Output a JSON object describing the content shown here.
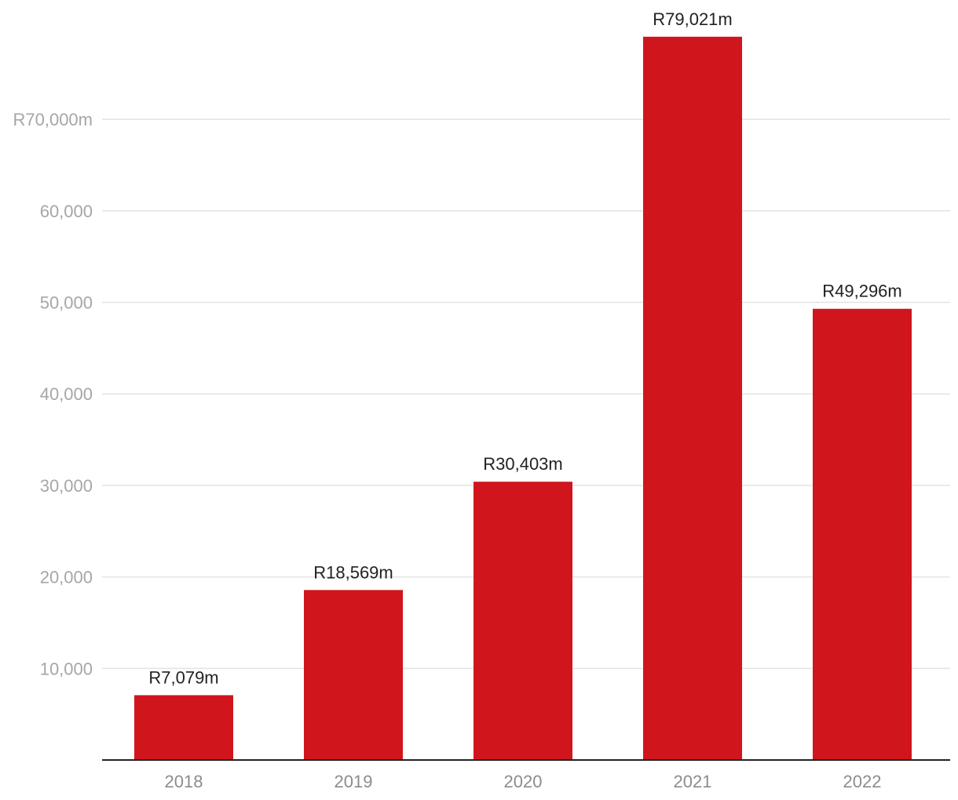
{
  "chart_data": {
    "type": "bar",
    "categories": [
      "2018",
      "2019",
      "2020",
      "2021",
      "2022"
    ],
    "values": [
      7079,
      18569,
      30403,
      79021,
      49296
    ],
    "data_labels": [
      "R7,079m",
      "R18,569m",
      "R30,403m",
      "R79,021m",
      "R49,296m"
    ],
    "y_ticks": [
      10000,
      20000,
      30000,
      40000,
      50000,
      60000,
      70000
    ],
    "y_tick_labels": [
      "10,000",
      "20,000",
      "30,000",
      "40,000",
      "50,000",
      "60,000",
      "R70,000m"
    ],
    "ylim": [
      0,
      79021
    ],
    "grid": true,
    "colors": {
      "bar": "#d0151d",
      "grid": "#e3e3e3",
      "axis": "#222222",
      "tick_text": "#a6a6a6",
      "label_text": "#222222"
    }
  }
}
